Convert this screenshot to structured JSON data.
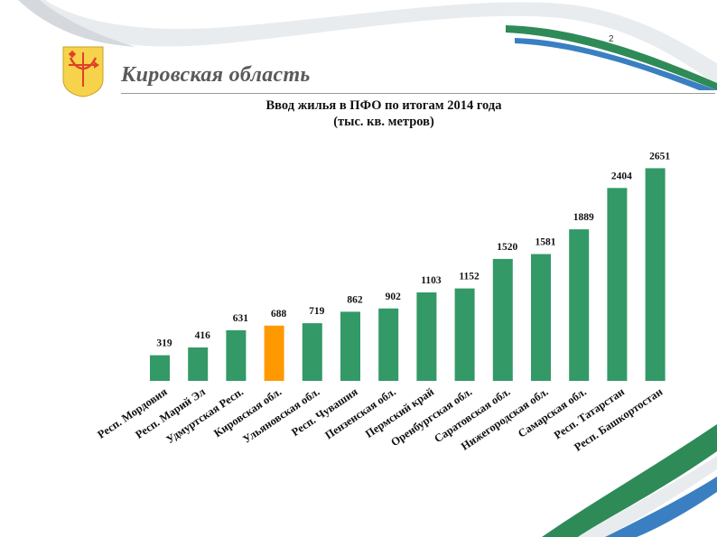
{
  "page_number": "2",
  "region_title": "Кировская область",
  "colors": {
    "bar": "#339966",
    "highlight": "#ff9900",
    "ribbon_green": "#2e8b57",
    "ribbon_blue": "#3a7fc1",
    "emblem_yellow": "#f6d34a",
    "emblem_red": "#e0402a"
  },
  "icons": {
    "emblem": "kirov-oblast-coat-of-arms-icon"
  },
  "chart_data": {
    "type": "bar",
    "title": "Ввод жилья в ПФО по итогам 2014 года",
    "subtitle": "(тыс. кв. метров)",
    "xlabel": "",
    "ylabel": "",
    "ylim": [
      0,
      2700
    ],
    "grid": false,
    "legend": "none",
    "categories": [
      "Респ. Мордовия",
      "Респ. Марий Эл",
      "Удмуртская Респ.",
      "Кировская обл.",
      "Ульяновская обл.",
      "Респ. Чувашия",
      "Пензенская обл.",
      "Пермский край",
      "Оренбургская обл.",
      "Саратовская обл.",
      "Нижегородская обл.",
      "Самарская обл.",
      "Респ. Татарстан",
      "Респ. Башкортостан"
    ],
    "values": [
      319,
      416,
      631,
      688,
      719,
      862,
      902,
      1103,
      1152,
      1520,
      1581,
      1889,
      2404,
      2651
    ],
    "labels": [
      "319",
      "416",
      "631",
      "688",
      "719",
      "862",
      "902",
      "1103",
      "1152",
      "1520",
      "1581",
      "1889",
      "2404",
      "2651"
    ],
    "highlight_index": 3
  }
}
